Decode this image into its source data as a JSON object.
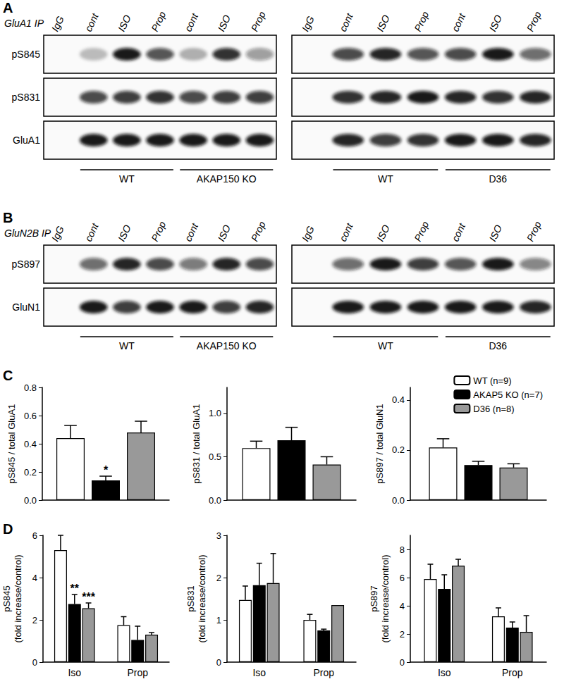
{
  "panels": [
    {
      "letter": "A",
      "ip_label": "GluA1 IP",
      "lanes": [
        "IgG",
        "cont",
        "ISO",
        "Prop",
        "cont",
        "ISO",
        "Prop"
      ],
      "blots": [
        {
          "groups": [
            "WT",
            "AKAP150 KO"
          ],
          "rows": [
            {
              "label": "pS845",
              "bands": [
                0,
                0.25,
                0.95,
                0.7,
                0.3,
                0.85,
                0.4
              ]
            },
            {
              "label": "pS831",
              "bands": [
                0,
                0.75,
                0.8,
                0.85,
                0.75,
                0.8,
                0.8
              ]
            },
            {
              "label": "GluA1",
              "bands": [
                0,
                0.95,
                0.95,
                0.95,
                0.95,
                0.95,
                0.95
              ]
            }
          ]
        },
        {
          "groups": [
            "WT",
            "D36"
          ],
          "rows": [
            {
              "bands": [
                0,
                0.75,
                0.9,
                0.7,
                0.75,
                0.95,
                0.6
              ]
            },
            {
              "bands": [
                0,
                0.85,
                0.9,
                0.95,
                0.9,
                0.85,
                0.9
              ]
            },
            {
              "bands": [
                0,
                0.9,
                0.8,
                0.85,
                0.95,
                0.95,
                0.9
              ]
            }
          ]
        }
      ]
    },
    {
      "letter": "B",
      "ip_label": "GluN2B IP",
      "lanes": [
        "IgG",
        "cont",
        "ISO",
        "Prop",
        "cont",
        "ISO",
        "Prop"
      ],
      "blots": [
        {
          "groups": [
            "WT",
            "AKAP150 KO"
          ],
          "rows": [
            {
              "label": "pS897",
              "bands": [
                0,
                0.6,
                0.9,
                0.75,
                0.55,
                0.9,
                0.75
              ]
            },
            {
              "label": "GluN1",
              "bands": [
                0,
                0.95,
                0.8,
                0.95,
                0.95,
                0.8,
                0.9
              ]
            }
          ]
        },
        {
          "groups": [
            "WT",
            "D36"
          ],
          "rows": [
            {
              "bands": [
                0,
                0.6,
                0.95,
                0.8,
                0.7,
                0.95,
                0.5
              ]
            },
            {
              "bands": [
                0,
                0.95,
                0.95,
                0.95,
                0.95,
                0.95,
                0.9
              ]
            }
          ]
        }
      ]
    }
  ],
  "chart_panel_letters": [
    "C",
    "D"
  ],
  "chart_data": [
    {
      "type": "bar",
      "ylabel": "pS845 / total GluA1",
      "categories": [
        null
      ],
      "tick_labels": "y",
      "ylim": [
        0,
        0.8
      ],
      "yticks": [
        {
          "value": 0,
          "label": "0.0"
        },
        0.2,
        0.4,
        0.6,
        0.8
      ],
      "series": [
        {
          "name": "WT (n=9)",
          "color": "#ffffff",
          "values": [
            0.44
          ],
          "errors": [
            0.09
          ]
        },
        {
          "name": "AKAP5 KO (n=7)",
          "color": "#000000",
          "values": [
            0.14
          ],
          "errors": [
            0.03
          ],
          "annotations": [
            "*"
          ]
        },
        {
          "name": "D36 (n=8)",
          "color": "#999999",
          "values": [
            0.48
          ],
          "errors": [
            0.08
          ]
        }
      ]
    },
    {
      "type": "bar",
      "ylabel": "pS831 / total GluA1",
      "categories": [
        null
      ],
      "tick_labels": "y",
      "ylim": [
        0,
        1.3
      ],
      "yticks": [
        {
          "value": 0,
          "label": "0.0"
        },
        0.5,
        {
          "value": 1,
          "label": "1.0"
        }
      ],
      "series": [
        {
          "name": "WT (n=9)",
          "color": "#ffffff",
          "values": [
            0.6
          ],
          "errors": [
            0.08
          ]
        },
        {
          "name": "AKAP5 KO (n=7)",
          "color": "#000000",
          "values": [
            0.69
          ],
          "errors": [
            0.15
          ]
        },
        {
          "name": "D36 (n=8)",
          "color": "#999999",
          "values": [
            0.41
          ],
          "errors": [
            0.09
          ]
        }
      ]
    },
    {
      "type": "bar",
      "ylabel": "pS897 / total GluN1",
      "categories": [
        null
      ],
      "tick_labels": "y",
      "legend": "top-right",
      "ylim": [
        0,
        0.45
      ],
      "yticks": [
        {
          "value": 0,
          "label": "0.0"
        },
        0.2,
        0.4
      ],
      "series": [
        {
          "name": "WT (n=9)",
          "color": "#ffffff",
          "values": [
            0.21
          ],
          "errors": [
            0.035
          ]
        },
        {
          "name": "AKAP5 KO (n=7)",
          "color": "#000000",
          "values": [
            0.14
          ],
          "errors": [
            0.015
          ]
        },
        {
          "name": "D36 (n=8)",
          "color": "#999999",
          "values": [
            0.13
          ],
          "errors": [
            0.015
          ]
        }
      ]
    },
    {
      "type": "bar",
      "ylabel": "pS845\n(fold increase/control)",
      "categories": [
        "Iso",
        "Prop"
      ],
      "ylim": [
        0,
        6
      ],
      "yticks": [
        0,
        2,
        4,
        6
      ],
      "series": [
        {
          "name": "WT (n=9)",
          "color": "#ffffff",
          "values": [
            5.3,
            1.75
          ],
          "errors": [
            0.7,
            0.4
          ]
        },
        {
          "name": "AKAP5 KO (n=7)",
          "color": "#000000",
          "values": [
            2.75,
            1.05
          ],
          "errors": [
            0.45,
            0.65
          ],
          "annotations": [
            "**",
            null
          ]
        },
        {
          "name": "D36 (n=8)",
          "color": "#999999",
          "values": [
            2.55,
            1.3
          ],
          "errors": [
            0.25,
            0.1
          ],
          "annotations": [
            "***",
            null
          ]
        }
      ]
    },
    {
      "type": "bar",
      "ylabel": "pS831\n(fold increase/control)",
      "categories": [
        "Iso",
        "Prop"
      ],
      "ylim": [
        0,
        3
      ],
      "yticks": [
        0,
        1,
        2,
        3
      ],
      "series": [
        {
          "name": "WT (n=9)",
          "color": "#ffffff",
          "values": [
            1.47,
            1.0
          ],
          "errors": [
            0.33,
            0.13
          ]
        },
        {
          "name": "AKAP5 KO (n=7)",
          "color": "#000000",
          "values": [
            1.82,
            0.75
          ],
          "errors": [
            0.52,
            0.03
          ]
        },
        {
          "name": "D36 (n=8)",
          "color": "#999999",
          "values": [
            1.87,
            1.35
          ],
          "errors": [
            0.7,
            0
          ]
        }
      ]
    },
    {
      "type": "bar",
      "ylabel": "pS897\n(fold increase/control)",
      "categories": [
        "Iso",
        "Prop"
      ],
      "ylim": [
        0,
        9
      ],
      "yticks": [
        0,
        2,
        4,
        6,
        8
      ],
      "series": [
        {
          "name": "WT (n=9)",
          "color": "#ffffff",
          "values": [
            5.9,
            3.25
          ],
          "errors": [
            1.05,
            0.6
          ]
        },
        {
          "name": "AKAP5 KO (n=7)",
          "color": "#000000",
          "values": [
            5.2,
            2.45
          ],
          "errors": [
            1.0,
            0.4
          ]
        },
        {
          "name": "D36 (n=8)",
          "color": "#999999",
          "values": [
            6.85,
            2.15
          ],
          "errors": [
            0.45,
            1.15
          ]
        }
      ]
    }
  ]
}
